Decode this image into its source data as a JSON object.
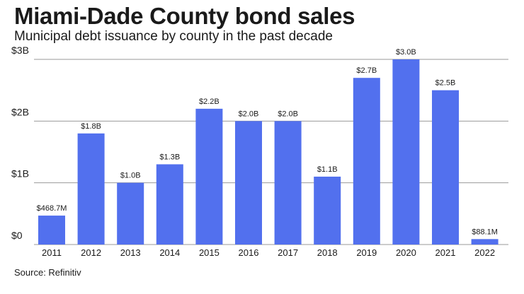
{
  "title": "Miami-Dade County bond sales",
  "subtitle": "Municipal debt issuance by county in the past decade",
  "source": "Source: Refinitiv",
  "colors": {
    "bar": "#5270ee",
    "grid": "#999999"
  },
  "chart_data": {
    "type": "bar",
    "title": "Miami-Dade County bond sales",
    "subtitle": "Municipal debt issuance by county in the past decade",
    "xlabel": "",
    "ylabel": "",
    "ylim": [
      0,
      3
    ],
    "yunit": "billions of dollars",
    "yticks": [
      {
        "value": 0,
        "label": "$0"
      },
      {
        "value": 1,
        "label": "$1B"
      },
      {
        "value": 2,
        "label": "$2B"
      },
      {
        "value": 3,
        "label": "$3B"
      }
    ],
    "grid": true,
    "categories": [
      "2011",
      "2012",
      "2013",
      "2014",
      "2015",
      "2016",
      "2017",
      "2018",
      "2019",
      "2020",
      "2021",
      "2022"
    ],
    "values": [
      0.4687,
      1.8,
      1.0,
      1.3,
      2.2,
      2.0,
      2.0,
      1.1,
      2.7,
      3.0,
      2.5,
      0.0881
    ],
    "data_labels": [
      "$468.7M",
      "$1.8B",
      "$1.0B",
      "$1.3B",
      "$2.2B",
      "$2.0B",
      "$2.0B",
      "$1.1B",
      "$2.7B",
      "$3.0B",
      "$2.5B",
      "$88.1M"
    ]
  }
}
